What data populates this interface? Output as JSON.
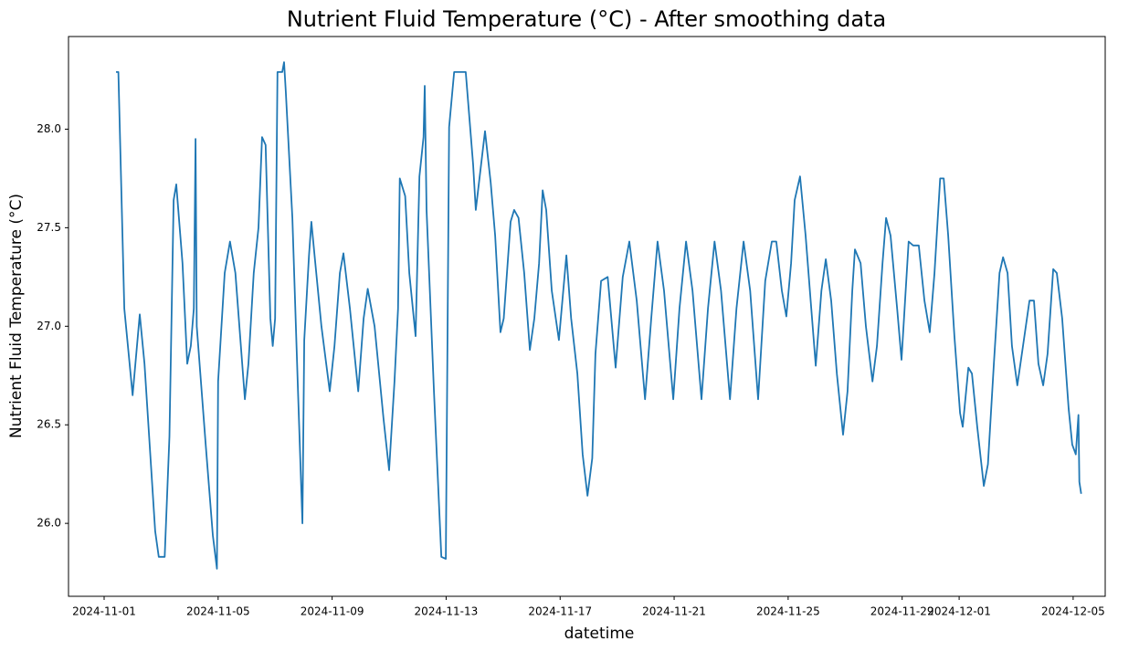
{
  "chart_data": {
    "type": "line",
    "title": "Nutrient Fluid Temperature (°C) - After smoothing data",
    "xlabel": "datetime",
    "ylabel": "Nutrient Fluid Temperature (°C)",
    "color": "#1f77b4",
    "x": [
      "2024-11-01 10:00",
      "2024-11-01 12:00",
      "2024-11-01 17:00",
      "2024-11-02 00:00",
      "2024-11-02 06:00",
      "2024-11-02 10:00",
      "2024-11-02 19:00",
      "2024-11-02 22:00",
      "2024-11-03 03:00",
      "2024-11-03 07:00",
      "2024-11-03 10:30",
      "2024-11-03 12:45",
      "2024-11-03 18:00",
      "2024-11-03 22:00",
      "2024-11-04 01:00",
      "2024-11-04 03:30",
      "2024-11-04 05:00",
      "2024-11-04 06:00",
      "2024-11-04 13:30",
      "2024-11-04 19:30",
      "2024-11-04 23:00",
      "2024-11-05 00:00",
      "2024-11-05 05:30",
      "2024-11-05 10:00",
      "2024-11-05 14:30",
      "2024-11-05 22:30",
      "2024-11-06 01:30",
      "2024-11-06 06:00",
      "2024-11-06 10:00",
      "2024-11-06 13:00",
      "2024-11-06 16:00",
      "2024-11-06 20:00",
      "2024-11-06 22:00",
      "2024-11-07 00:00",
      "2024-11-07 02:00",
      "2024-11-07 06:00",
      "2024-11-07 07:30",
      "2024-11-07 09:00",
      "2024-11-07 14:30",
      "2024-11-07 19:00",
      "2024-11-07 23:00",
      "2024-11-08 00:30",
      "2024-11-08 04:30",
      "2024-11-08 06:30",
      "2024-11-08 09:30",
      "2024-11-08 15:00",
      "2024-11-08 22:00",
      "2024-11-09 02:00",
      "2024-11-09 06:30",
      "2024-11-09 09:30",
      "2024-11-09 15:00",
      "2024-11-09 22:00",
      "2024-11-10 02:30",
      "2024-11-10 06:00",
      "2024-11-10 11:45",
      "2024-11-10 19:15",
      "2024-11-11 00:00",
      "2024-11-11 04:30",
      "2024-11-11 07:30",
      "2024-11-11 09:00",
      "2024-11-11 13:30",
      "2024-11-11 17:00",
      "2024-11-11 22:15",
      "2024-11-12 01:30",
      "2024-11-12 05:00",
      "2024-11-12 06:00",
      "2024-11-12 07:30",
      "2024-11-12 13:45",
      "2024-11-12 20:00",
      "2024-11-12 23:45",
      "2024-11-13 02:30",
      "2024-11-13 06:45",
      "2024-11-13 16:30",
      "2024-11-13 22:45",
      "2024-11-14 01:00",
      "2024-11-14 08:45",
      "2024-11-14 13:30",
      "2024-11-14 17:15",
      "2024-11-14 21:45",
      "2024-11-15 00:30",
      "2024-11-15 06:15",
      "2024-11-15 09:15",
      "2024-11-15 13:00",
      "2024-11-15 17:45",
      "2024-11-15 22:30",
      "2024-11-16 02:15",
      "2024-11-16 06:15",
      "2024-11-16 09:15",
      "2024-11-16 12:15",
      "2024-11-16 17:00",
      "2024-11-16 23:00",
      "2024-11-17 05:15",
      "2024-11-17 09:15",
      "2024-11-17 14:30",
      "2024-11-17 19:00",
      "2024-11-17 23:00",
      "2024-11-18 03:00",
      "2024-11-18 05:45",
      "2024-11-18 10:30",
      "2024-11-18 16:00",
      "2024-11-18 22:45",
      "2024-11-19 04:45",
      "2024-11-19 10:15",
      "2024-11-19 16:30",
      "2024-11-19 23:30",
      "2024-11-20 04:45",
      "2024-11-20 10:00",
      "2024-11-20 15:30",
      "2024-11-20 23:15",
      "2024-11-21 04:30",
      "2024-11-21 10:00",
      "2024-11-21 15:30",
      "2024-11-21 23:00",
      "2024-11-22 04:30",
      "2024-11-22 10:00",
      "2024-11-22 15:30",
      "2024-11-22 23:00",
      "2024-11-23 04:30",
      "2024-11-23 10:30",
      "2024-11-23 16:00",
      "2024-11-23 22:45",
      "2024-11-24 04:45",
      "2024-11-24 10:15",
      "2024-11-24 14:00",
      "2024-11-24 18:45",
      "2024-11-24 22:30",
      "2024-11-25 02:30",
      "2024-11-25 05:30",
      "2024-11-25 10:00",
      "2024-11-25 14:45",
      "2024-11-25 19:30",
      "2024-11-25 23:15",
      "2024-11-26 04:00",
      "2024-11-26 07:45",
      "2024-11-26 12:15",
      "2024-11-26 17:00",
      "2024-11-26 22:15",
      "2024-11-27 02:00",
      "2024-11-27 06:00",
      "2024-11-27 08:15",
      "2024-11-27 13:00",
      "2024-11-27 17:30",
      "2024-11-27 23:00",
      "2024-11-28 02:45",
      "2024-11-28 07:30",
      "2024-11-28 10:30",
      "2024-11-28 14:15",
      "2024-11-28 19:45",
      "2024-11-28 23:30",
      "2024-11-29 02:30",
      "2024-11-29 05:30",
      "2024-11-29 09:15",
      "2024-11-29 14:00",
      "2024-11-29 18:45",
      "2024-11-29 23:15",
      "2024-11-30 03:15",
      "2024-11-30 08:00",
      "2024-11-30 11:00",
      "2024-11-30 14:45",
      "2024-11-30 20:00",
      "2024-12-01 00:45",
      "2024-12-01 03:00",
      "2024-12-01 07:45",
      "2024-12-01 10:45",
      "2024-12-01 15:15",
      "2024-12-01 20:45",
      "2024-12-02 00:15",
      "2024-12-02 05:15",
      "2024-12-02 10:00",
      "2024-12-02 13:00",
      "2024-12-02 16:45",
      "2024-12-02 20:30",
      "2024-12-03 01:00",
      "2024-12-03 05:45",
      "2024-12-03 11:15",
      "2024-12-03 15:00",
      "2024-12-03 18:45",
      "2024-12-03 22:45",
      "2024-12-04 02:30",
      "2024-12-04 07:15",
      "2024-12-04 10:15",
      "2024-12-04 14:45",
      "2024-12-04 20:15",
      "2024-12-04 23:15",
      "2024-12-05 02:15",
      "2024-12-05 04:30",
      "2024-12-05 05:15",
      "2024-12-05 06:45"
    ],
    "values": [
      28.29,
      28.29,
      27.09,
      26.65,
      27.06,
      26.81,
      25.96,
      25.83,
      25.83,
      26.44,
      27.64,
      27.72,
      27.32,
      26.81,
      26.9,
      27.09,
      27.95,
      27.0,
      26.4,
      25.94,
      25.77,
      26.72,
      27.27,
      27.43,
      27.27,
      26.63,
      26.81,
      27.27,
      27.5,
      27.96,
      27.92,
      27.04,
      26.9,
      27.04,
      28.29,
      28.29,
      28.34,
      28.19,
      27.55,
      26.72,
      26.0,
      26.93,
      27.36,
      27.53,
      27.34,
      27.0,
      26.67,
      26.9,
      27.27,
      27.37,
      27.09,
      26.67,
      27.04,
      27.19,
      27.0,
      26.53,
      26.27,
      26.72,
      27.09,
      27.75,
      27.66,
      27.27,
      26.95,
      27.76,
      27.96,
      28.22,
      27.59,
      26.67,
      25.83,
      25.82,
      28.01,
      28.29,
      28.29,
      27.82,
      27.59,
      27.99,
      27.73,
      27.46,
      26.97,
      27.04,
      27.53,
      27.59,
      27.55,
      27.27,
      26.88,
      27.04,
      27.32,
      27.69,
      27.59,
      27.18,
      26.93,
      27.36,
      27.04,
      26.76,
      26.35,
      26.14,
      26.33,
      26.86,
      27.23,
      27.25,
      26.79,
      27.25,
      27.43,
      27.13,
      26.63,
      27.04,
      27.43,
      27.18,
      26.63,
      27.09,
      27.43,
      27.18,
      26.63,
      27.09,
      27.43,
      27.18,
      26.63,
      27.09,
      27.43,
      27.18,
      26.63,
      27.23,
      27.43,
      27.43,
      27.18,
      27.05,
      27.32,
      27.64,
      27.76,
      27.46,
      27.09,
      26.8,
      27.18,
      27.34,
      27.13,
      26.76,
      26.45,
      26.67,
      27.18,
      27.39,
      27.32,
      27.0,
      26.72,
      26.9,
      27.32,
      27.55,
      27.46,
      27.09,
      26.83,
      27.13,
      27.43,
      27.41,
      27.41,
      27.13,
      26.97,
      27.27,
      27.75,
      27.75,
      27.46,
      26.95,
      26.56,
      26.49,
      26.79,
      26.76,
      26.49,
      26.19,
      26.3,
      26.81,
      27.27,
      27.35,
      27.27,
      26.9,
      26.7,
      26.9,
      27.13,
      27.13,
      26.81,
      26.7,
      26.86,
      27.29,
      27.27,
      27.04,
      26.58,
      26.4,
      26.35,
      26.55,
      26.21,
      26.15
    ],
    "xlim": [
      "2024-10-30 18:00",
      "2024-12-06 03:00"
    ],
    "xticks": [
      "2024-11-01",
      "2024-11-05",
      "2024-11-09",
      "2024-11-13",
      "2024-11-17",
      "2024-11-21",
      "2024-11-25",
      "2024-11-29",
      "2024-12-01",
      "2024-12-05"
    ],
    "ylim": [
      25.63,
      28.47
    ],
    "yticks": [
      {
        "value": 26,
        "label": "26.0"
      },
      {
        "value": 26.5,
        "label": "26.5"
      },
      {
        "value": 27,
        "label": "27.0"
      },
      {
        "value": 27.5,
        "label": "27.5"
      },
      {
        "value": 28,
        "label": "28.0"
      }
    ]
  }
}
